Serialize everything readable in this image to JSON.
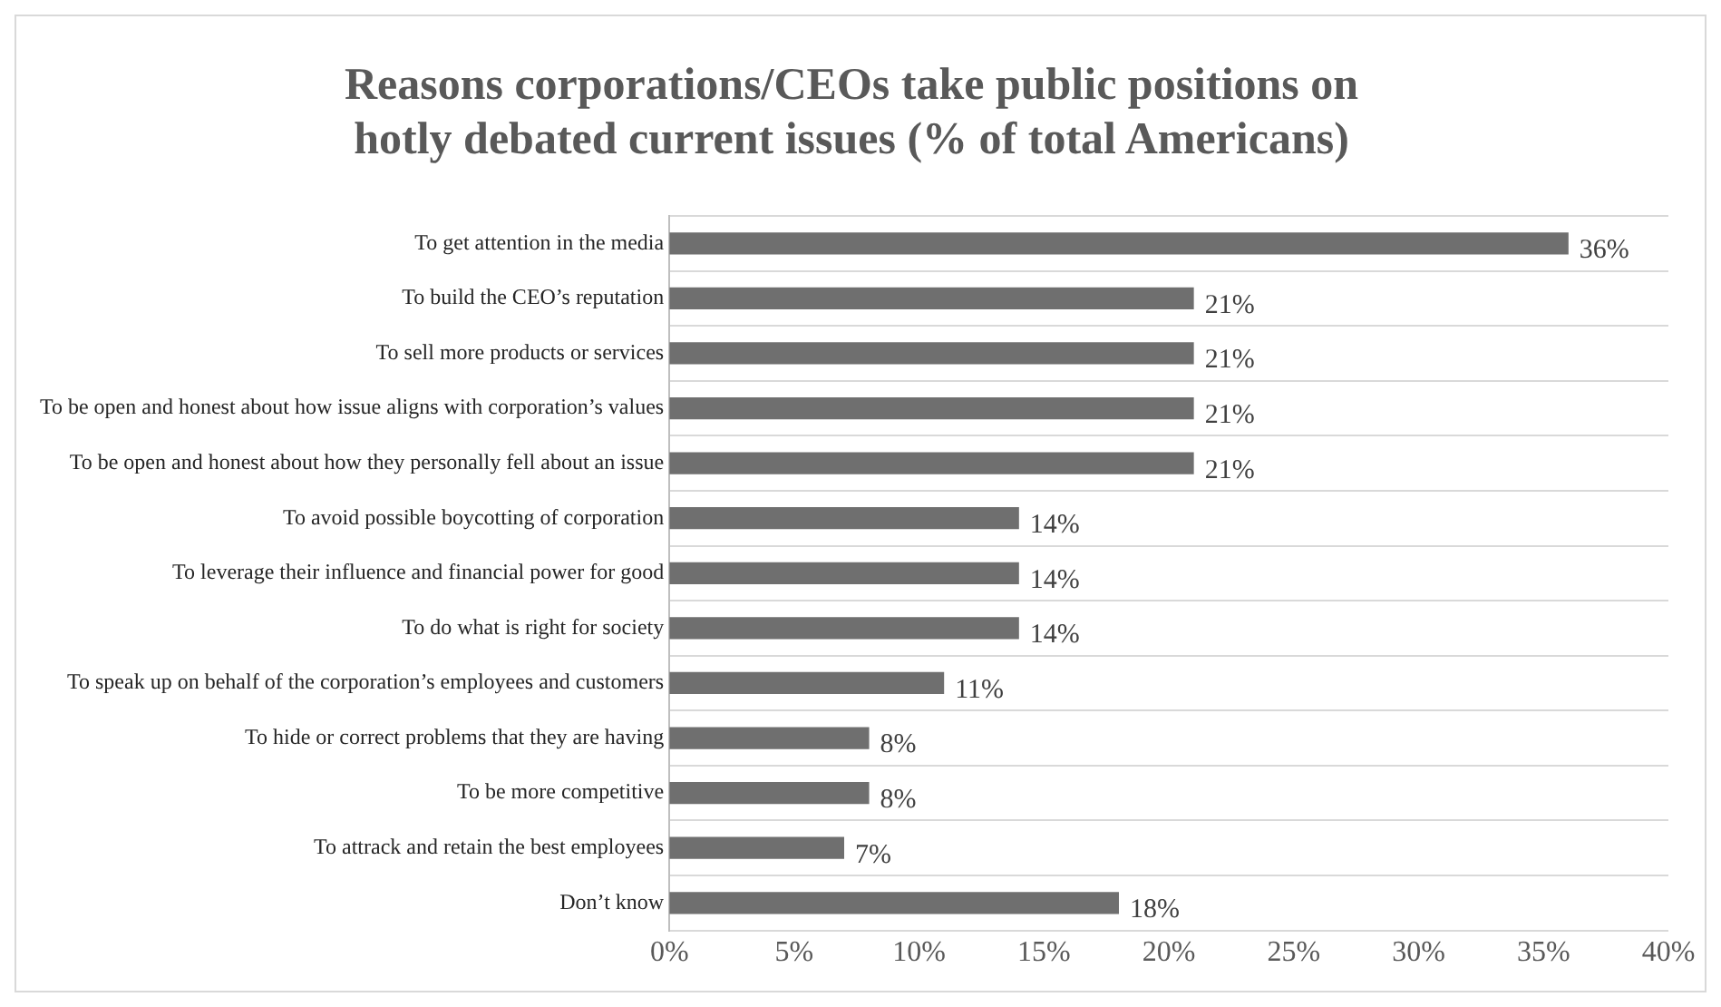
{
  "chart_data": {
    "type": "bar",
    "orientation": "horizontal",
    "title": "Reasons corporations/CEOs take public positions on hotly debated current issues (% of total Americans)",
    "categories": [
      "To get attention in the media",
      "To build the CEO’s reputation",
      "To sell more products or services",
      "To be open and honest about how issue aligns with corporation’s values",
      "To be open and honest about how they personally fell about an issue",
      "To avoid possible boycotting of corporation",
      "To leverage their influence and financial power for good",
      "To do what is right for society",
      "To speak up on behalf of the corporation’s employees and customers",
      "To hide or correct problems that they are having",
      "To be more competitive",
      "To attrack and retain the best employees",
      "Don’t know"
    ],
    "values": [
      36,
      21,
      21,
      21,
      21,
      14,
      14,
      14,
      11,
      8,
      8,
      7,
      18
    ],
    "value_labels": [
      "36%",
      "21%",
      "21%",
      "21%",
      "21%",
      "14%",
      "14%",
      "14%",
      "11%",
      "8%",
      "8%",
      "7%",
      "18%"
    ],
    "color": "#6f6f6f",
    "xlim": [
      0,
      40
    ],
    "xticks": [
      {
        "value": 0,
        "label": "0%"
      },
      {
        "value": 5,
        "label": "5%"
      },
      {
        "value": 10,
        "label": "10%"
      },
      {
        "value": 15,
        "label": "15%"
      },
      {
        "value": 20,
        "label": "20%"
      },
      {
        "value": 25,
        "label": "25%"
      },
      {
        "value": 30,
        "label": "30%"
      },
      {
        "value": 35,
        "label": "35%"
      },
      {
        "value": 40,
        "label": "40%"
      }
    ],
    "grid": "y",
    "legend": false
  }
}
